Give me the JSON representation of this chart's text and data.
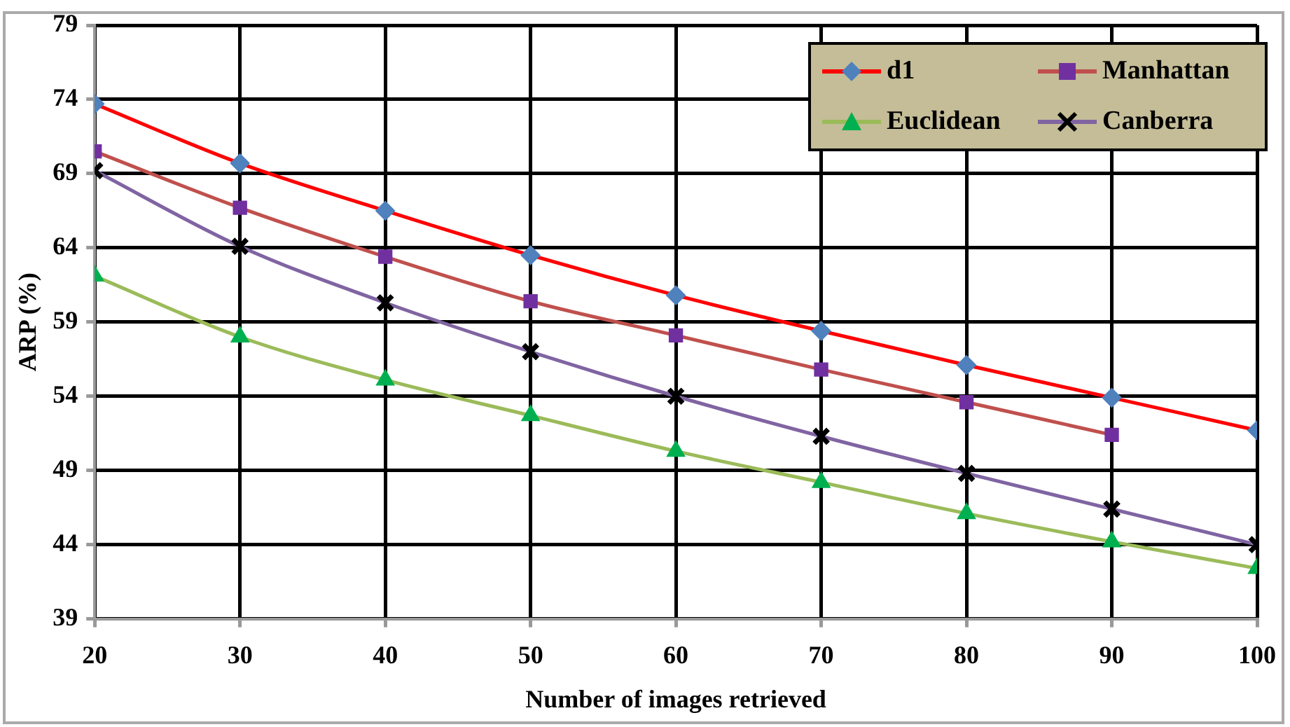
{
  "chart_data": {
    "type": "line",
    "xlabel": "Number of images retrieved",
    "ylabel": "ARP (%)",
    "x": [
      20,
      30,
      40,
      50,
      60,
      70,
      80,
      90,
      100
    ],
    "xlim": [
      20,
      100
    ],
    "xticks": [
      20,
      30,
      40,
      50,
      60,
      70,
      80,
      90,
      100
    ],
    "ylim": [
      39,
      79
    ],
    "yticks": [
      39,
      44,
      49,
      54,
      59,
      64,
      69,
      74,
      79
    ],
    "grid": true,
    "legend": "top right",
    "series": [
      {
        "name": "d1",
        "color": "#ff0000",
        "colors": [
          "#4f81bd",
          "#4f81bd",
          "#4f81bd",
          "#4f81bd",
          "#4f81bd",
          "#4f81bd",
          "#4f81bd",
          "#4f81bd",
          "#4f81bd"
        ],
        "marker": "diamond",
        "values": [
          73.7,
          69.7,
          66.5,
          63.5,
          60.8,
          58.4,
          56.1,
          53.9,
          51.7
        ]
      },
      {
        "name": "Manhattan",
        "color": "#c0504d",
        "colors": [
          "#7030a0",
          "#7030a0",
          "#7030a0",
          "#7030a0",
          "#7030a0",
          "#7030a0",
          "#7030a0",
          "#7030a0",
          null
        ],
        "marker": "square",
        "values": [
          70.5,
          66.7,
          63.4,
          60.4,
          58.1,
          55.8,
          53.6,
          51.4,
          null
        ]
      },
      {
        "name": "Euclidean",
        "color": "#9bbb59",
        "colors": [
          "#00b050",
          "#00b050",
          "#00b050",
          "#00b050",
          "#00b050",
          "#00b050",
          "#00b050",
          "#00b050",
          "#00b050"
        ],
        "marker": "triangle",
        "values": [
          62.1,
          58.0,
          55.1,
          52.7,
          50.3,
          48.2,
          46.1,
          44.2,
          42.4
        ]
      },
      {
        "name": "Canberra",
        "color": "#8064a2",
        "colors": [
          "#000000",
          "#000000",
          "#000000",
          "#000000",
          "#000000",
          "#000000",
          "#000000",
          "#000000",
          "#000000"
        ],
        "marker": "cross",
        "values": [
          69.2,
          64.1,
          60.3,
          57.0,
          54.0,
          51.3,
          48.8,
          46.4,
          44.0
        ]
      }
    ]
  }
}
